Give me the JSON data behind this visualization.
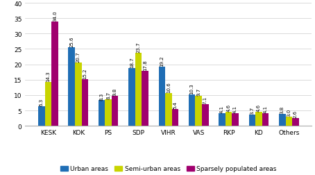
{
  "categories": [
    "KESK",
    "KOK",
    "PS",
    "SDP",
    "VIHR",
    "VAS",
    "RKP",
    "KD",
    "Others"
  ],
  "urban": [
    6.3,
    25.6,
    8.3,
    18.7,
    19.2,
    10.3,
    4.1,
    3.7,
    3.8
  ],
  "semi_urban": [
    14.3,
    20.7,
    8.7,
    23.7,
    10.6,
    9.7,
    4.6,
    4.6,
    3.0
  ],
  "sparsely": [
    34.0,
    15.2,
    9.8,
    17.8,
    5.4,
    7.1,
    4.1,
    4.1,
    2.6
  ],
  "urban_color": "#1f6eb5",
  "semi_color": "#c8d400",
  "sparse_color": "#a0006e",
  "ylim": [
    0,
    40
  ],
  "yticks": [
    0,
    5,
    10,
    15,
    20,
    25,
    30,
    35,
    40
  ],
  "legend_labels": [
    "Urban areas",
    "Semi-urban areas",
    "Sparsely populated areas"
  ],
  "bar_width": 0.22,
  "font_size_labels": 5.0,
  "font_size_ticks": 6.5,
  "font_size_legend": 6.5
}
